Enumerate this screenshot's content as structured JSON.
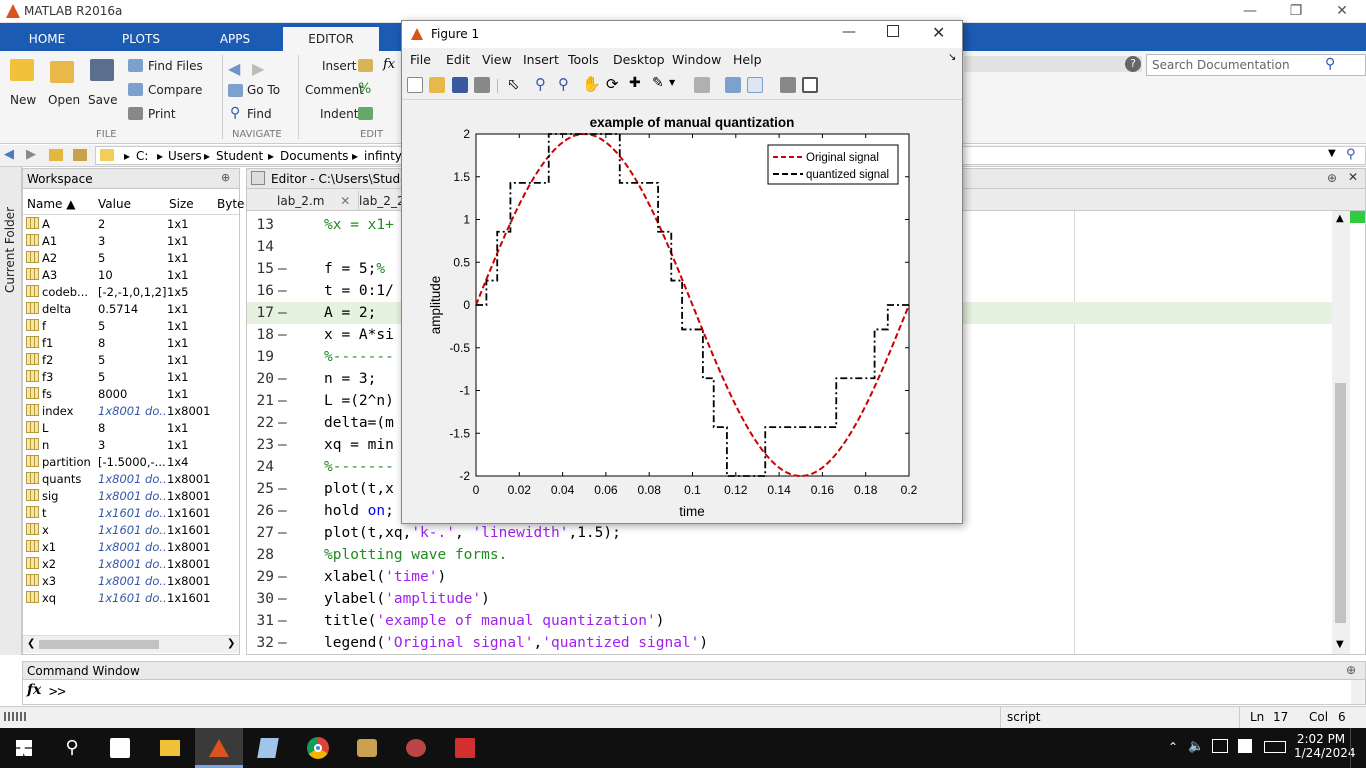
{
  "app": {
    "title": "MATLAB R2016a"
  },
  "tabs": [
    "HOME",
    "PLOTS",
    "APPS",
    "EDITOR"
  ],
  "ribbon": {
    "new": "New",
    "open": "Open",
    "save": "Save",
    "find_files": "Find Files",
    "compare": "Compare",
    "print": "Print",
    "file_group": "FILE",
    "go_to": "Go To",
    "find": "Find",
    "navigate_group": "NAVIGATE",
    "insert": "Insert",
    "comment": "Comment",
    "indent": "Indent",
    "edit_group": "EDIT",
    "search_placeholder": "Search Documentation"
  },
  "address": {
    "path": [
      "C:",
      "Users",
      "Student",
      "Documents",
      "infinty"
    ]
  },
  "current_folder": {
    "label": "Current Folder"
  },
  "workspace": {
    "title": "Workspace",
    "columns": [
      "Name ▲",
      "Value",
      "Size",
      "Byte"
    ],
    "rows": [
      {
        "name": "A",
        "value": "2",
        "size": "1x1",
        "italic": false
      },
      {
        "name": "A1",
        "value": "3",
        "size": "1x1",
        "italic": false
      },
      {
        "name": "A2",
        "value": "5",
        "size": "1x1",
        "italic": false
      },
      {
        "name": "A3",
        "value": "10",
        "size": "1x1",
        "italic": false
      },
      {
        "name": "codeb...",
        "value": "[-2,-1,0,1,2]",
        "size": "1x5",
        "italic": false
      },
      {
        "name": "delta",
        "value": "0.5714",
        "size": "1x1",
        "italic": false
      },
      {
        "name": "f",
        "value": "5",
        "size": "1x1",
        "italic": false
      },
      {
        "name": "f1",
        "value": "8",
        "size": "1x1",
        "italic": false
      },
      {
        "name": "f2",
        "value": "5",
        "size": "1x1",
        "italic": false
      },
      {
        "name": "f3",
        "value": "5",
        "size": "1x1",
        "italic": false
      },
      {
        "name": "fs",
        "value": "8000",
        "size": "1x1",
        "italic": false
      },
      {
        "name": "index",
        "value": "1x8001 do...",
        "size": "1x8001",
        "italic": true
      },
      {
        "name": "L",
        "value": "8",
        "size": "1x1",
        "italic": false
      },
      {
        "name": "n",
        "value": "3",
        "size": "1x1",
        "italic": false
      },
      {
        "name": "partition",
        "value": "[-1.5000,-...",
        "size": "1x4",
        "italic": false
      },
      {
        "name": "quants",
        "value": "1x8001 do...",
        "size": "1x8001",
        "italic": true
      },
      {
        "name": "sig",
        "value": "1x8001 do...",
        "size": "1x8001",
        "italic": true
      },
      {
        "name": "t",
        "value": "1x1601 do...",
        "size": "1x1601",
        "italic": true
      },
      {
        "name": "x",
        "value": "1x1601 do...",
        "size": "1x1601",
        "italic": true
      },
      {
        "name": "x1",
        "value": "1x8001 do...",
        "size": "1x8001",
        "italic": true
      },
      {
        "name": "x2",
        "value": "1x8001 do...",
        "size": "1x8001",
        "italic": true
      },
      {
        "name": "x3",
        "value": "1x8001 do...",
        "size": "1x8001",
        "italic": true
      },
      {
        "name": "xq",
        "value": "1x1601 do...",
        "size": "1x1601",
        "italic": true
      }
    ]
  },
  "editor": {
    "title": "Editor - C:\\Users\\Student",
    "tabs": [
      "lab_2.m",
      "lab_2_2.m"
    ],
    "highlight_line": 17,
    "lines": [
      {
        "n": "13",
        "dash": false,
        "parts": [
          [
            "c",
            "%x = x1+"
          ]
        ]
      },
      {
        "n": "14",
        "dash": false,
        "parts": []
      },
      {
        "n": "15",
        "dash": true,
        "parts": [
          [
            "p",
            "f = 5;"
          ],
          [
            "c",
            "%"
          ]
        ]
      },
      {
        "n": "16",
        "dash": true,
        "parts": [
          [
            "p",
            "t = 0:1/"
          ]
        ]
      },
      {
        "n": "17",
        "dash": true,
        "parts": [
          [
            "p",
            "A = 2;"
          ]
        ]
      },
      {
        "n": "18",
        "dash": true,
        "parts": [
          [
            "p",
            "x = A*si"
          ]
        ]
      },
      {
        "n": "19",
        "dash": false,
        "parts": [
          [
            "c",
            "%-------"
          ]
        ]
      },
      {
        "n": "20",
        "dash": true,
        "parts": [
          [
            "p",
            "n = 3;"
          ]
        ]
      },
      {
        "n": "21",
        "dash": true,
        "parts": [
          [
            "p",
            "L =(2^n)"
          ]
        ]
      },
      {
        "n": "22",
        "dash": true,
        "parts": [
          [
            "p",
            "delta=(m"
          ]
        ]
      },
      {
        "n": "23",
        "dash": true,
        "parts": [
          [
            "p",
            "xq = min"
          ]
        ]
      },
      {
        "n": "24",
        "dash": false,
        "parts": [
          [
            "c",
            "%-------"
          ]
        ]
      },
      {
        "n": "25",
        "dash": true,
        "parts": [
          [
            "p",
            "plot(t,x"
          ]
        ]
      },
      {
        "n": "26",
        "dash": true,
        "parts": [
          [
            "p",
            "hold "
          ],
          [
            "k",
            "on"
          ],
          [
            "p",
            ";"
          ]
        ]
      },
      {
        "n": "27",
        "dash": true,
        "parts": [
          [
            "p",
            "plot(t,xq,"
          ],
          [
            "s",
            "'k-.'"
          ],
          [
            "p",
            ", "
          ],
          [
            "s",
            "'linewidth'"
          ],
          [
            "p",
            ",1.5);"
          ]
        ]
      },
      {
        "n": "28",
        "dash": false,
        "parts": [
          [
            "c",
            "%plotting wave forms."
          ]
        ]
      },
      {
        "n": "29",
        "dash": true,
        "parts": [
          [
            "p",
            "xlabel("
          ],
          [
            "s",
            "'time'"
          ],
          [
            "p",
            ")"
          ]
        ]
      },
      {
        "n": "30",
        "dash": true,
        "parts": [
          [
            "p",
            "ylabel("
          ],
          [
            "s",
            "'amplitude'"
          ],
          [
            "p",
            ")"
          ]
        ]
      },
      {
        "n": "31",
        "dash": true,
        "parts": [
          [
            "p",
            "title("
          ],
          [
            "s",
            "'example of manual quantization'"
          ],
          [
            "p",
            ")"
          ]
        ]
      },
      {
        "n": "32",
        "dash": true,
        "parts": [
          [
            "p",
            "legend("
          ],
          [
            "s",
            "'Original signal'"
          ],
          [
            "p",
            ","
          ],
          [
            "s",
            "'quantized signal'"
          ],
          [
            "p",
            ")"
          ]
        ]
      }
    ]
  },
  "command_window": {
    "title": "Command Window",
    "prompt": ">>",
    "fx": "fx"
  },
  "status": {
    "mode": "script",
    "ln_label": "Ln",
    "ln": "17",
    "col_label": "Col",
    "col": "6"
  },
  "taskbar": {
    "time": "2:02 PM",
    "date": "1/24/2024"
  },
  "figure": {
    "title": "Figure 1",
    "menus": [
      "File",
      "Edit",
      "View",
      "Insert",
      "Tools",
      "Desktop",
      "Window",
      "Help"
    ]
  },
  "chart_data": {
    "type": "line",
    "title": "example of manual quantization",
    "xlabel": "time",
    "ylabel": "amplitude",
    "xlim": [
      0,
      0.2
    ],
    "ylim": [
      -2,
      2
    ],
    "xticks": [
      "0",
      "0.02",
      "0.04",
      "0.06",
      "0.08",
      "0.1",
      "0.12",
      "0.14",
      "0.16",
      "0.18",
      "0.2"
    ],
    "yticks": [
      "2",
      "1.5",
      "1",
      "0.5",
      "0",
      "-0.5",
      "-1",
      "-1.5",
      "-2"
    ],
    "legend_position": "top-right",
    "series": [
      {
        "name": "Original signal",
        "style": "dashed",
        "color": "#cc0000",
        "function": "2*sin(2*pi*5*t)"
      },
      {
        "name": "quantized signal",
        "style": "dash-dot",
        "color": "#000000",
        "x": [
          0,
          0.0048,
          0.0048,
          0.0098,
          0.0098,
          0.0159,
          0.0159,
          0.0336,
          0.0336,
          0.0664,
          0.0664,
          0.0841,
          0.0841,
          0.0902,
          0.0902,
          0.0952,
          0.0952,
          0.1048,
          0.1048,
          0.1098,
          0.1098,
          0.1159,
          0.1159,
          0.1336,
          0.1336,
          0.1664,
          0.1664,
          0.1841,
          0.1841,
          0.1902,
          0.1902,
          0.1952,
          0.1952,
          0.2
        ],
        "y": [
          0,
          0,
          0.2857,
          0.2857,
          0.8571,
          0.8571,
          1.4286,
          1.4286,
          2,
          2,
          1.4286,
          1.4286,
          0.8571,
          0.8571,
          0.2857,
          0.2857,
          -0.2857,
          -0.2857,
          -0.8571,
          -0.8571,
          -1.4286,
          -1.4286,
          -2,
          -2,
          -1.4286,
          -1.4286,
          -0.8571,
          -0.8571,
          -0.2857,
          -0.2857,
          0,
          0,
          0,
          0
        ]
      }
    ]
  }
}
